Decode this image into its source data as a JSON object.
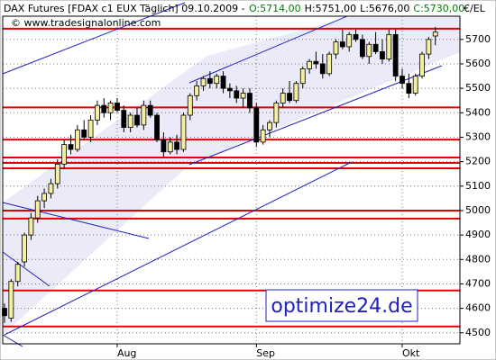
{
  "chart_data": {
    "type": "candlestick",
    "title": "DAX Futures [FDAX c1 EUX  Täglich] 09.10.2009 -",
    "quote": [
      {
        "text": "O:5714,00",
        "color": "#008000"
      },
      {
        "text": "H:5751,00",
        "color": "#000000"
      },
      {
        "text": "L:5676,00",
        "color": "#000000"
      },
      {
        "text": "C:5730,00",
        "color": "#008000"
      }
    ],
    "subtitle": "© www.tradesignalonline.com",
    "y_label": "€/EL",
    "watermark": "optimize24.de",
    "categories": [
      null,
      null,
      null,
      null,
      null,
      null,
      null,
      null,
      null,
      null,
      null,
      null,
      null,
      null,
      null,
      null,
      null,
      "Aug",
      null,
      null,
      null,
      null,
      null,
      null,
      null,
      null,
      null,
      null,
      null,
      null,
      null,
      null,
      null,
      null,
      null,
      null,
      null,
      null,
      "Sep",
      null,
      null,
      null,
      null,
      null,
      null,
      null,
      null,
      null,
      null,
      null,
      null,
      null,
      null,
      null,
      null,
      null,
      null,
      null,
      null,
      null,
      "Okt",
      null,
      null,
      null,
      null,
      null
    ],
    "open": [
      4600,
      4560,
      4710,
      4790,
      4900,
      4970,
      5040,
      5070,
      5110,
      5190,
      5270,
      5250,
      5330,
      5300,
      5370,
      5430,
      5400,
      5440,
      5410,
      5340,
      5390,
      5350,
      5430,
      5390,
      5290,
      5240,
      5280,
      5250,
      5390,
      5470,
      5510,
      5540,
      5520,
      5550,
      5500,
      5490,
      5460,
      5480,
      5420,
      5280,
      5330,
      5360,
      5440,
      5480,
      5450,
      5520,
      5580,
      5610,
      5600,
      5560,
      5640,
      5690,
      5670,
      5720,
      5700,
      5630,
      5680,
      5650,
      5620,
      5720,
      5550,
      5520,
      5480,
      5550,
      5640,
      5714
    ],
    "high": [
      4620,
      4720,
      4790,
      4910,
      4990,
      5060,
      5090,
      5130,
      5210,
      5290,
      5310,
      5350,
      5370,
      5390,
      5450,
      5460,
      5450,
      5460,
      5430,
      5400,
      5420,
      5450,
      5450,
      5400,
      5320,
      5300,
      5310,
      5400,
      5480,
      5530,
      5550,
      5570,
      5560,
      5570,
      5520,
      5510,
      5500,
      5500,
      5440,
      5350,
      5370,
      5450,
      5500,
      5530,
      5530,
      5590,
      5620,
      5650,
      5640,
      5650,
      5700,
      5740,
      5730,
      5740,
      5720,
      5690,
      5730,
      5700,
      5740,
      5740,
      5580,
      5560,
      5560,
      5650,
      5710,
      5751
    ],
    "low": [
      4540,
      4545,
      4690,
      4770,
      4880,
      4950,
      5010,
      5050,
      5090,
      5170,
      5230,
      5240,
      5290,
      5280,
      5350,
      5380,
      5370,
      5400,
      5320,
      5320,
      5340,
      5330,
      5380,
      5280,
      5220,
      5230,
      5230,
      5240,
      5370,
      5450,
      5490,
      5500,
      5500,
      5480,
      5460,
      5440,
      5420,
      5400,
      5260,
      5270,
      5300,
      5340,
      5420,
      5440,
      5440,
      5500,
      5560,
      5580,
      5540,
      5550,
      5620,
      5660,
      5650,
      5690,
      5620,
      5600,
      5640,
      5600,
      5610,
      5530,
      5500,
      5460,
      5470,
      5540,
      5620,
      5676
    ],
    "close": [
      4570,
      4710,
      4780,
      4900,
      4970,
      5040,
      5070,
      5110,
      5190,
      5270,
      5250,
      5330,
      5300,
      5370,
      5430,
      5400,
      5440,
      5410,
      5340,
      5390,
      5350,
      5430,
      5390,
      5290,
      5240,
      5280,
      5250,
      5390,
      5470,
      5510,
      5540,
      5520,
      5550,
      5500,
      5490,
      5460,
      5480,
      5420,
      5280,
      5330,
      5360,
      5440,
      5480,
      5450,
      5520,
      5580,
      5610,
      5600,
      5560,
      5640,
      5690,
      5670,
      5720,
      5700,
      5630,
      5680,
      5650,
      5620,
      5720,
      5550,
      5520,
      5480,
      5550,
      5640,
      5700,
      5730
    ],
    "up_color": "#f5f0a0",
    "down_color": "#000000",
    "levels": [
      5744,
      5422,
      5290,
      5217,
      5195,
      5173,
      5000,
      4967,
      4673,
      4526
    ],
    "level_color": "#e00000",
    "ylim": [
      4455,
      5795
    ],
    "yticks": [
      4500,
      4600,
      4700,
      4800,
      4900,
      5000,
      5100,
      5200,
      5300,
      5400,
      5500,
      5600,
      5700
    ],
    "grid": true
  }
}
